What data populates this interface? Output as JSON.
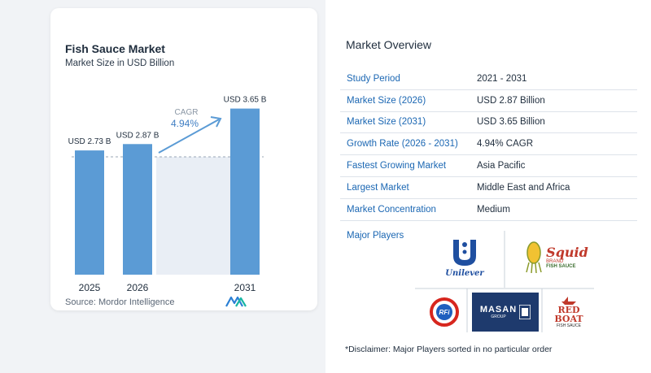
{
  "chart": {
    "title": "Fish Sauce Market",
    "subtitle": "Market Size in USD Billion",
    "source": "Source:  Mordor Intelligence",
    "cagr_label": "CAGR",
    "cagr_value": "4.94%"
  },
  "chart_data": {
    "type": "bar",
    "title": "Fish Sauce Market",
    "subtitle": "Market Size in USD Billion",
    "categories": [
      "2025",
      "2026",
      "2031"
    ],
    "values": [
      2.73,
      2.87,
      3.65
    ],
    "data_labels": [
      "USD 2.73 B",
      "USD 2.87 B",
      "USD 3.65 B"
    ],
    "annotation": "CAGR 4.94%",
    "bar_color": "#5b9bd5"
  },
  "overview": {
    "title": "Market Overview",
    "rows": [
      {
        "label": "Study Period",
        "value": "2021 - 2031"
      },
      {
        "label": "Market Size (2026)",
        "value": "USD 2.87 Billion"
      },
      {
        "label": "Market Size (2031)",
        "value": "USD 3.65 Billion"
      },
      {
        "label": "Growth Rate (2026 - 2031)",
        "value": "4.94% CAGR"
      },
      {
        "label": "Fastest Growing Market",
        "value": "Asia Pacific"
      },
      {
        "label": "Largest Market",
        "value": "Middle East and Africa"
      },
      {
        "label": "Market Concentration",
        "value": "Medium"
      }
    ],
    "players_title": "Major Players",
    "players": [
      "Unilever",
      "Squid Brand Fish Sauce",
      "RFI",
      "MASAN GROUP",
      "Red Boat Fish Sauce"
    ],
    "disclaimer": "*Disclaimer: Major Players sorted in no particular order"
  },
  "logos": {
    "unilever": "Unilever",
    "squid": "Squid",
    "squid_brand": "BRAND",
    "squid_sub": "FISH SAUCE",
    "rfi": "RFi",
    "masan": "MASAN",
    "masan_sub": "GROUP",
    "redboat_1": "RED",
    "redboat_2": "BOAT",
    "redboat_sub": "FISH SAUCE"
  },
  "colors": {
    "bar": "#5b9bd5",
    "accent": "#1b67b3",
    "arrow": "#5b9bd5",
    "panel_shade": "#e9eef5"
  }
}
